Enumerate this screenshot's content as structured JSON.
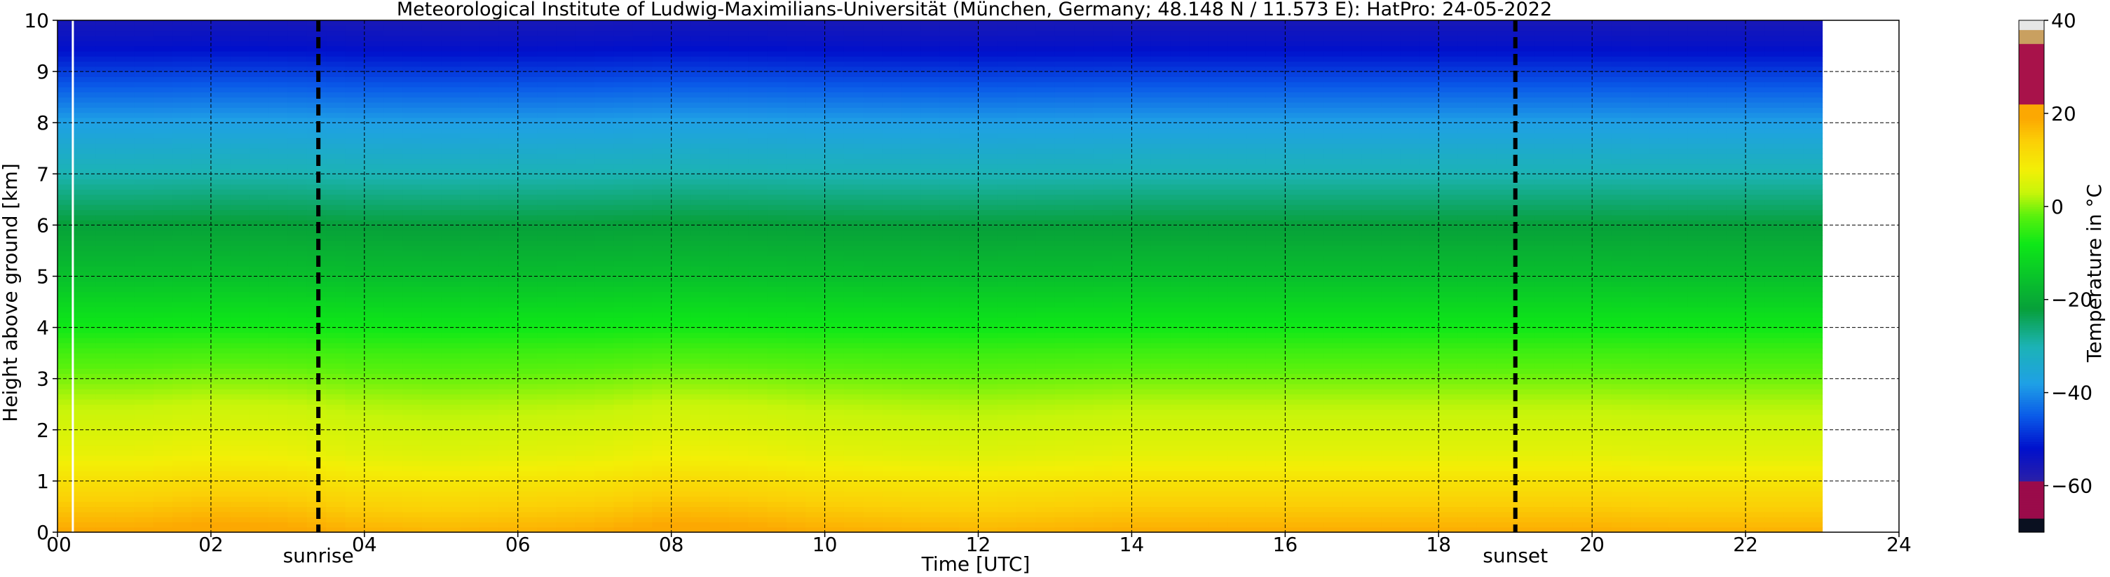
{
  "chart_data": [
    {
      "type": "heatmap",
      "title": "Meteorological Institute of Ludwig-Maximilians-Universität (München, Germany; 48.148 N / 11.573 E):    HatPro: 24-05-2022",
      "xlabel": "Time [UTC]",
      "ylabel": "Height above ground [km]",
      "xlim": [
        0,
        24
      ],
      "ylim": [
        0,
        10
      ],
      "x_ticks": [
        0,
        2,
        4,
        6,
        8,
        10,
        12,
        14,
        16,
        18,
        20,
        22,
        24
      ],
      "x_tick_labels": [
        "00",
        "02",
        "04",
        "06",
        "08",
        "10",
        "12",
        "14",
        "16",
        "18",
        "20",
        "22",
        "24"
      ],
      "y_ticks": [
        0,
        1,
        2,
        3,
        4,
        5,
        6,
        7,
        8,
        9,
        10
      ],
      "y_tick_labels": [
        "0",
        "1",
        "2",
        "3",
        "4",
        "5",
        "6",
        "7",
        "8",
        "9",
        "10"
      ],
      "grid": true,
      "data_x_range": [
        0,
        23.0
      ],
      "gap_x_hours": [
        0.2
      ],
      "annotations": [
        {
          "label": "sunrise",
          "x": 3.4
        },
        {
          "label": "sunset",
          "x": 19.0
        }
      ],
      "temperature_profile": {
        "heights_km": [
          0,
          0.5,
          1,
          1.5,
          2,
          2.5,
          3,
          3.5,
          4,
          4.5,
          5,
          5.5,
          6,
          6.5,
          7,
          7.5,
          8,
          8.5,
          9,
          9.5,
          10
        ],
        "temperature_c": [
          18,
          14,
          10,
          6,
          4,
          2,
          -1,
          -4,
          -8,
          -12,
          -16,
          -19,
          -22,
          -26,
          -30,
          -34,
          -38,
          -43,
          -48,
          -53,
          -56
        ]
      },
      "hourly_offset_c": [
        1,
        1,
        2,
        1.5,
        0,
        -0.5,
        0,
        0.5,
        2,
        1.5,
        0.5,
        0,
        -0.5,
        0,
        0.5,
        0.5,
        0.5,
        0.5,
        0.5,
        0.5,
        0.5,
        0,
        0,
        0
      ]
    },
    {
      "type": "colorbar",
      "label": "Temperature in $^\\circ$C",
      "label_text": "Temperature in °C",
      "range": [
        -70,
        40
      ],
      "ticks": [
        40,
        20,
        0,
        -20,
        -40,
        -60
      ],
      "tick_labels": [
        "40",
        "20",
        "0",
        "−20",
        "−40",
        "−60"
      ],
      "color_stops": [
        {
          "value": -70,
          "color": "#0a1020"
        },
        {
          "value": -67,
          "color": "#0a1020"
        },
        {
          "value": -66.9,
          "color": "#9a0b4a"
        },
        {
          "value": -59,
          "color": "#9a0b4a"
        },
        {
          "value": -58.9,
          "color": "#2a1fa8"
        },
        {
          "value": -52,
          "color": "#0010cc"
        },
        {
          "value": -45,
          "color": "#0a5ae8"
        },
        {
          "value": -38,
          "color": "#1fa0e6"
        },
        {
          "value": -30,
          "color": "#1cb3b5"
        },
        {
          "value": -22,
          "color": "#07a03a"
        },
        {
          "value": -15,
          "color": "#09c42a"
        },
        {
          "value": -8,
          "color": "#0ee817"
        },
        {
          "value": -2,
          "color": "#58f10d"
        },
        {
          "value": 3,
          "color": "#c8f50a"
        },
        {
          "value": 8,
          "color": "#f3ef06"
        },
        {
          "value": 14,
          "color": "#fbd006"
        },
        {
          "value": 19,
          "color": "#fca802"
        },
        {
          "value": 22,
          "color": "#fca802"
        },
        {
          "value": 22.1,
          "color": "#a8124a"
        },
        {
          "value": 35,
          "color": "#a8124a"
        },
        {
          "value": 35.1,
          "color": "#c9a060"
        },
        {
          "value": 38,
          "color": "#c9a060"
        },
        {
          "value": 38.1,
          "color": "#e6e6e6"
        },
        {
          "value": 40,
          "color": "#e6e6e6"
        }
      ]
    }
  ]
}
